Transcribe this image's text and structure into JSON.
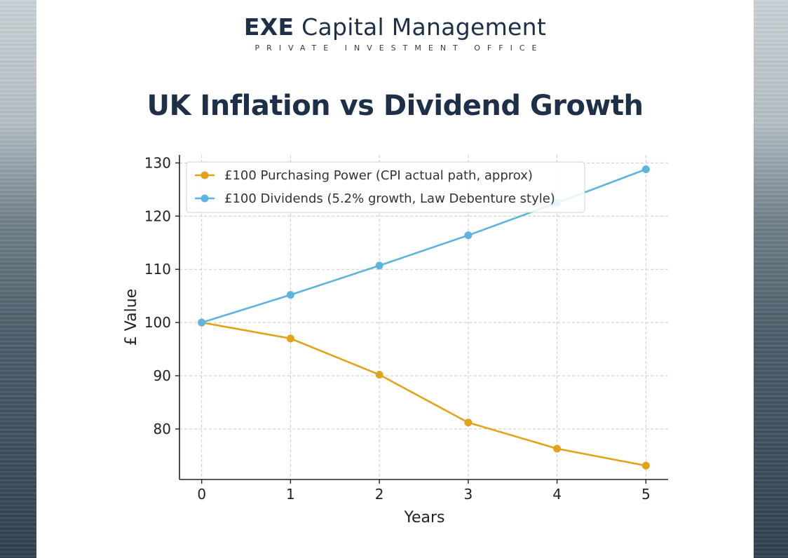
{
  "brand": {
    "name_bold": "EXE",
    "name_rest": "Capital Management",
    "subtitle": "PRIVATE INVESTMENT OFFICE"
  },
  "colors": {
    "navy": "#1e2f48",
    "series_purchasing": "#e0a31a",
    "series_dividends": "#5db4e0"
  },
  "chart_data": {
    "type": "line",
    "title": "UK Inflation vs Dividend Growth",
    "xlabel": "Years",
    "ylabel": "£ Value",
    "x": [
      0,
      1,
      2,
      3,
      4,
      5
    ],
    "xlim": [
      -0.25,
      5.25
    ],
    "ylim": [
      70.5,
      131.5
    ],
    "xticks": [
      0,
      1,
      2,
      3,
      4,
      5
    ],
    "yticks": [
      80,
      90,
      100,
      110,
      120,
      130
    ],
    "grid": true,
    "legend_position": "upper-left",
    "series": [
      {
        "name": "£100 Purchasing Power (CPI actual path, approx)",
        "color": "#e0a31a",
        "values": [
          100,
          97,
          90.2,
          81.2,
          76.3,
          73.1
        ]
      },
      {
        "name": "£100 Dividends (5.2% growth, Law Debenture style)",
        "color": "#5db4e0",
        "values": [
          100,
          105.2,
          110.7,
          116.4,
          122.5,
          128.8
        ]
      }
    ]
  }
}
